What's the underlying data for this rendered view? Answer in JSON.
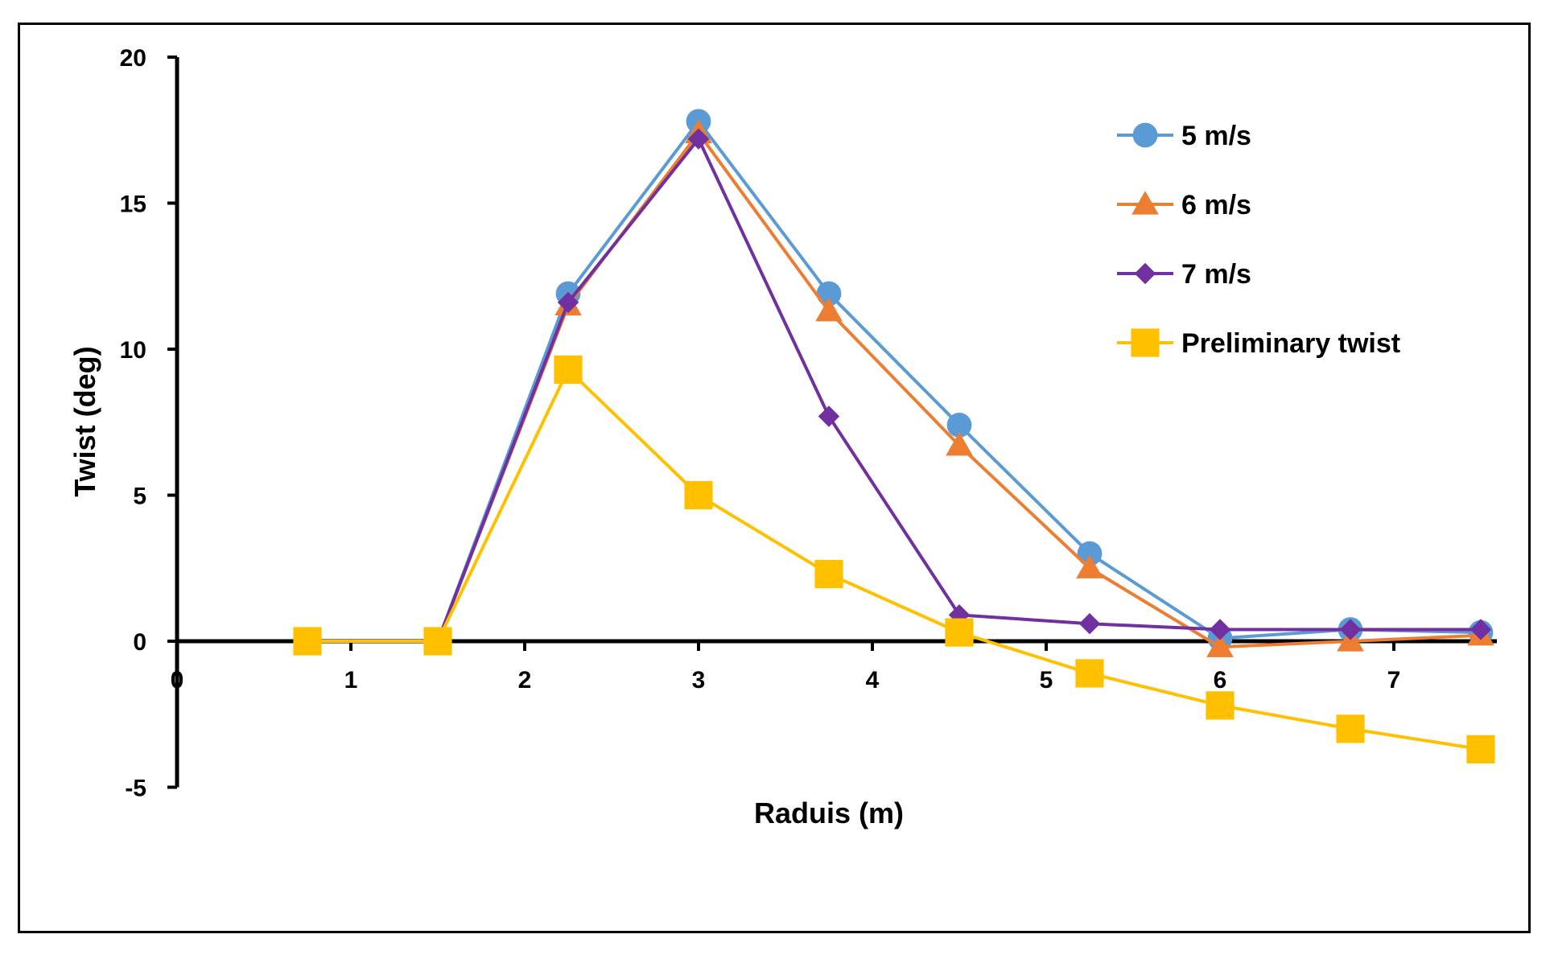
{
  "chart_data": {
    "type": "line",
    "title": "",
    "xlabel": "Raduis (m)",
    "ylabel": "Twist (deg)",
    "xlim": [
      0,
      7.5
    ],
    "ylim": [
      -5,
      20
    ],
    "xticks": [
      1,
      2,
      3,
      4,
      5,
      6,
      7
    ],
    "yticks": [
      20,
      15,
      10,
      5,
      0,
      -5
    ],
    "origin_label": "0",
    "x": [
      0.75,
      1.5,
      2.25,
      3.0,
      3.75,
      4.5,
      5.25,
      6.0,
      6.75,
      7.5
    ],
    "legend_position": "top-right",
    "series": [
      {
        "name": "5 m/s",
        "color": "#5B9BD5",
        "marker": "circle",
        "values": [
          0.0,
          0.0,
          11.9,
          17.8,
          11.9,
          7.4,
          3.0,
          0.1,
          0.4,
          0.3
        ]
      },
      {
        "name": "6 m/s",
        "color": "#ED7D31",
        "marker": "triangle",
        "values": [
          0.0,
          0.0,
          11.5,
          17.4,
          11.3,
          6.7,
          2.5,
          -0.2,
          0.0,
          0.2
        ]
      },
      {
        "name": "7 m/s",
        "color": "#7030A0",
        "marker": "diamond",
        "values": [
          0.0,
          0.0,
          11.6,
          17.2,
          7.7,
          0.9,
          0.6,
          0.4,
          0.4,
          0.4
        ]
      },
      {
        "name": "Preliminary twist",
        "color": "#FFC000",
        "marker": "square",
        "values": [
          0.0,
          0.0,
          9.3,
          5.0,
          2.3,
          0.3,
          -1.1,
          -2.2,
          -3.0,
          -3.7
        ]
      }
    ]
  }
}
